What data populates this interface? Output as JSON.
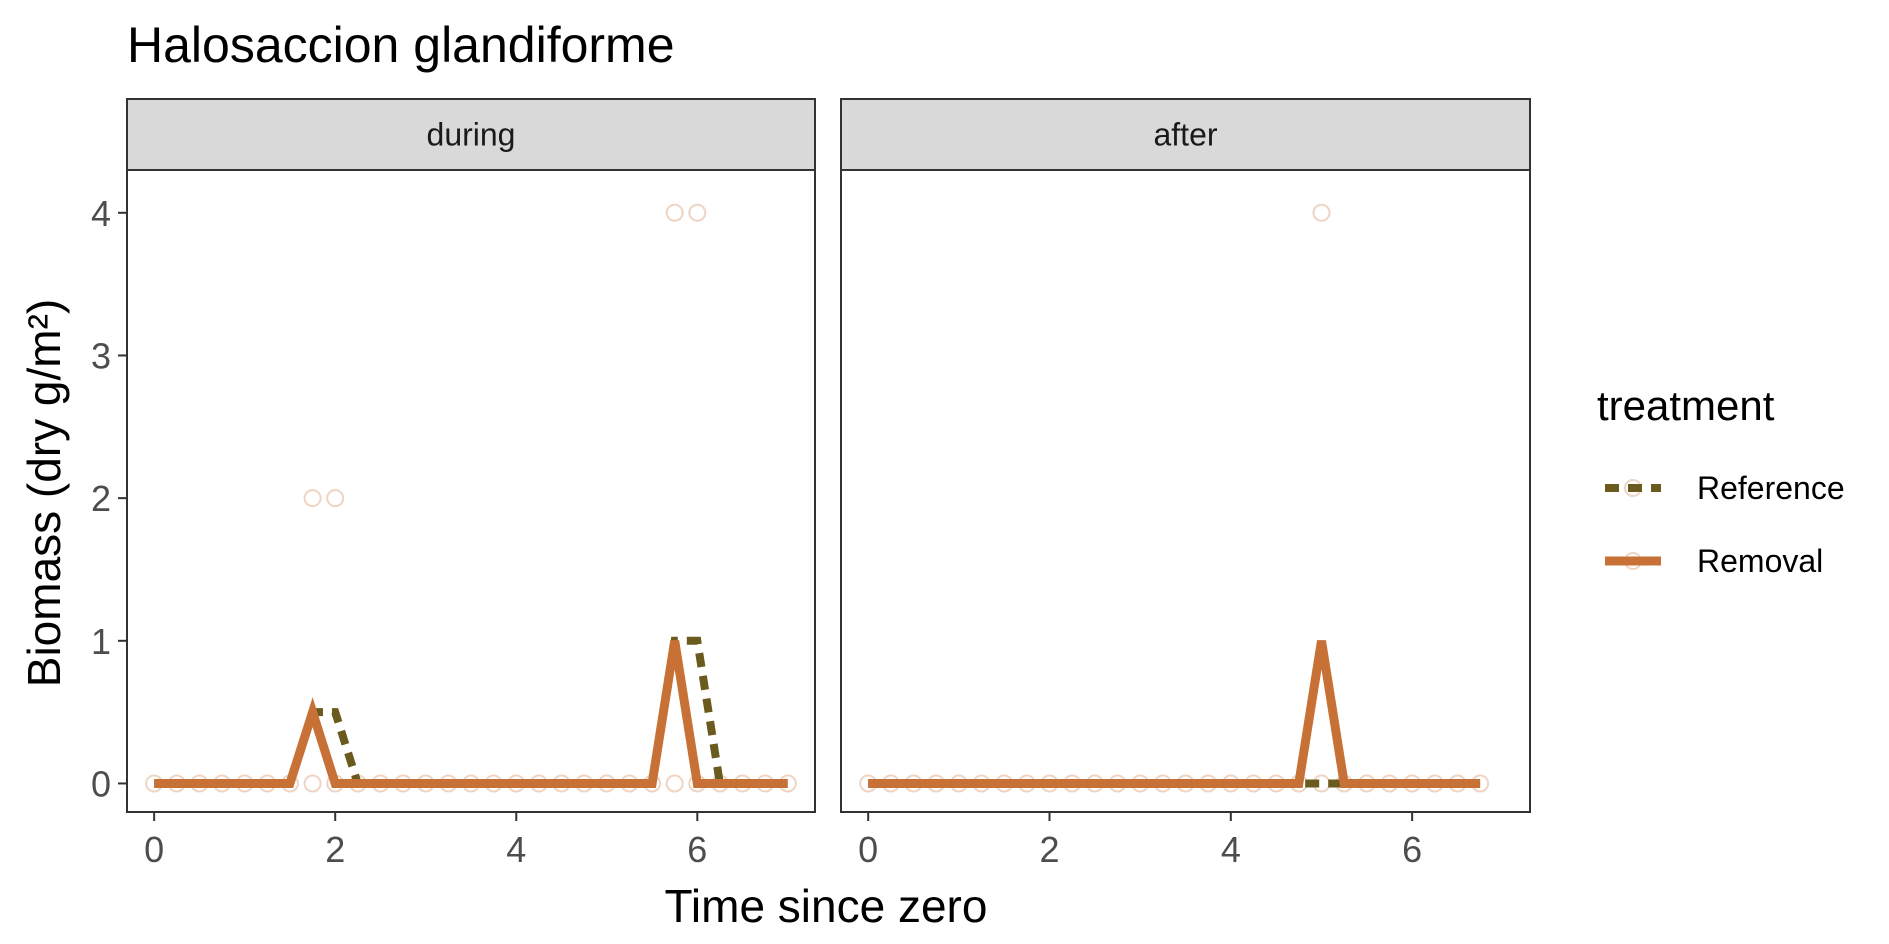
{
  "chart_data": {
    "type": "line",
    "title": "Halosaccion glandiforme",
    "xlabel": "Time since zero",
    "ylabel": "Biomass (dry g/m²)",
    "xlim": [
      -0.3,
      7.3
    ],
    "ylim": [
      -0.2,
      4.3
    ],
    "x_ticks": [
      0,
      2,
      4,
      6
    ],
    "y_ticks": [
      0,
      1,
      2,
      3,
      4
    ],
    "grid": false,
    "legend": {
      "title": "treatment",
      "position": "right",
      "entries": [
        {
          "name": "Reference",
          "color": "#6b5a1e",
          "dash": "dashed"
        },
        {
          "name": "Removal",
          "color": "#c87137",
          "dash": "solid"
        }
      ]
    },
    "colors": {
      "reference": "#6b5a1e",
      "removal": "#c87137",
      "point": "#c87137",
      "strip_bg": "#d9d9d9",
      "panel_border": "#333333"
    },
    "panels": [
      {
        "label": "during",
        "series": [
          {
            "name": "Reference",
            "x": [
              0,
              0.25,
              0.5,
              0.75,
              1,
              1.25,
              1.5,
              1.75,
              2,
              2.25,
              2.5,
              2.75,
              3,
              3.25,
              3.5,
              3.75,
              4,
              4.25,
              4.5,
              4.75,
              5,
              5.25,
              5.5,
              5.75,
              6,
              6.25,
              6.5,
              6.75,
              7
            ],
            "y": [
              0,
              0,
              0,
              0,
              0,
              0,
              0,
              0.5,
              0.5,
              0,
              0,
              0,
              0,
              0,
              0,
              0,
              0,
              0,
              0,
              0,
              0,
              0,
              0,
              1,
              1,
              0,
              0,
              0,
              0
            ]
          },
          {
            "name": "Removal",
            "x": [
              0,
              0.25,
              0.5,
              0.75,
              1,
              1.25,
              1.5,
              1.75,
              2,
              2.25,
              2.5,
              2.75,
              3,
              3.25,
              3.5,
              3.75,
              4,
              4.25,
              4.5,
              4.75,
              5,
              5.25,
              5.5,
              5.75,
              6,
              6.25,
              6.5,
              6.75,
              7
            ],
            "y": [
              0,
              0,
              0,
              0,
              0,
              0,
              0,
              0.5,
              0,
              0,
              0,
              0,
              0,
              0,
              0,
              0,
              0,
              0,
              0,
              0,
              0,
              0,
              0,
              1,
              0,
              0,
              0,
              0,
              0
            ]
          }
        ],
        "points": [
          {
            "x": 0,
            "y": 0
          },
          {
            "x": 0.25,
            "y": 0
          },
          {
            "x": 0.5,
            "y": 0
          },
          {
            "x": 0.75,
            "y": 0
          },
          {
            "x": 1,
            "y": 0
          },
          {
            "x": 1.25,
            "y": 0
          },
          {
            "x": 1.5,
            "y": 0
          },
          {
            "x": 1.75,
            "y": 2
          },
          {
            "x": 1.75,
            "y": 0
          },
          {
            "x": 2,
            "y": 2
          },
          {
            "x": 2,
            "y": 0
          },
          {
            "x": 2.25,
            "y": 0
          },
          {
            "x": 2.5,
            "y": 0
          },
          {
            "x": 2.75,
            "y": 0
          },
          {
            "x": 3,
            "y": 0
          },
          {
            "x": 3.25,
            "y": 0
          },
          {
            "x": 3.5,
            "y": 0
          },
          {
            "x": 3.75,
            "y": 0
          },
          {
            "x": 4,
            "y": 0
          },
          {
            "x": 4.25,
            "y": 0
          },
          {
            "x": 4.5,
            "y": 0
          },
          {
            "x": 4.75,
            "y": 0
          },
          {
            "x": 5,
            "y": 0
          },
          {
            "x": 5.25,
            "y": 0
          },
          {
            "x": 5.5,
            "y": 0
          },
          {
            "x": 5.75,
            "y": 4
          },
          {
            "x": 5.75,
            "y": 0
          },
          {
            "x": 6,
            "y": 4
          },
          {
            "x": 6,
            "y": 0
          },
          {
            "x": 6.25,
            "y": 0
          },
          {
            "x": 6.5,
            "y": 0
          },
          {
            "x": 6.75,
            "y": 0
          },
          {
            "x": 7,
            "y": 0
          }
        ]
      },
      {
        "label": "after",
        "series": [
          {
            "name": "Reference",
            "x": [
              0,
              0.25,
              0.5,
              0.75,
              1,
              1.25,
              1.5,
              1.75,
              2,
              2.25,
              2.5,
              2.75,
              3,
              3.25,
              3.5,
              3.75,
              4,
              4.25,
              4.5,
              4.75,
              5,
              5.25,
              5.5,
              5.75,
              6,
              6.25,
              6.5,
              6.75
            ],
            "y": [
              0,
              0,
              0,
              0,
              0,
              0,
              0,
              0,
              0,
              0,
              0,
              0,
              0,
              0,
              0,
              0,
              0,
              0,
              0,
              0,
              0,
              0,
              0,
              0,
              0,
              0,
              0,
              0
            ]
          },
          {
            "name": "Removal",
            "x": [
              0,
              0.25,
              0.5,
              0.75,
              1,
              1.25,
              1.5,
              1.75,
              2,
              2.25,
              2.5,
              2.75,
              3,
              3.25,
              3.5,
              3.75,
              4,
              4.25,
              4.5,
              4.75,
              5,
              5.25,
              5.5,
              5.75,
              6,
              6.25,
              6.5,
              6.75
            ],
            "y": [
              0,
              0,
              0,
              0,
              0,
              0,
              0,
              0,
              0,
              0,
              0,
              0,
              0,
              0,
              0,
              0,
              0,
              0,
              0,
              0,
              1,
              0,
              0,
              0,
              0,
              0,
              0,
              0
            ]
          }
        ],
        "points": [
          {
            "x": 0,
            "y": 0
          },
          {
            "x": 0.25,
            "y": 0
          },
          {
            "x": 0.5,
            "y": 0
          },
          {
            "x": 0.75,
            "y": 0
          },
          {
            "x": 1,
            "y": 0
          },
          {
            "x": 1.25,
            "y": 0
          },
          {
            "x": 1.5,
            "y": 0
          },
          {
            "x": 1.75,
            "y": 0
          },
          {
            "x": 2,
            "y": 0
          },
          {
            "x": 2.25,
            "y": 0
          },
          {
            "x": 2.5,
            "y": 0
          },
          {
            "x": 2.75,
            "y": 0
          },
          {
            "x": 3,
            "y": 0
          },
          {
            "x": 3.25,
            "y": 0
          },
          {
            "x": 3.5,
            "y": 0
          },
          {
            "x": 3.75,
            "y": 0
          },
          {
            "x": 4,
            "y": 0
          },
          {
            "x": 4.25,
            "y": 0
          },
          {
            "x": 4.5,
            "y": 0
          },
          {
            "x": 4.75,
            "y": 0
          },
          {
            "x": 5,
            "y": 4
          },
          {
            "x": 5,
            "y": 0
          },
          {
            "x": 5.25,
            "y": 0
          },
          {
            "x": 5.5,
            "y": 0
          },
          {
            "x": 5.75,
            "y": 0
          },
          {
            "x": 6,
            "y": 0
          },
          {
            "x": 6.25,
            "y": 0
          },
          {
            "x": 6.5,
            "y": 0
          },
          {
            "x": 6.75,
            "y": 0
          }
        ]
      }
    ]
  }
}
